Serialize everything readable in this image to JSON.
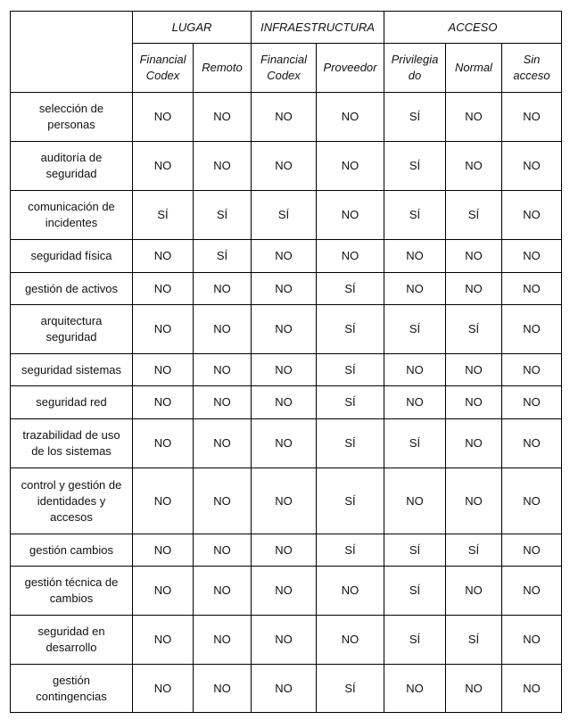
{
  "groups": [
    "LUGAR",
    "INFRAESTRUCTURA",
    "ACCESO"
  ],
  "subheaders": [
    [
      "Financial",
      "Codex"
    ],
    [
      "Remoto"
    ],
    [
      "Financial",
      "Codex"
    ],
    [
      "Proveedor"
    ],
    [
      "Privilegia",
      "do"
    ],
    [
      "Normal"
    ],
    [
      "Sin",
      "acceso"
    ]
  ],
  "rows": [
    {
      "label": [
        "selección de",
        "personas"
      ],
      "values": [
        "NO",
        "NO",
        "NO",
        "NO",
        "SÍ",
        "NO",
        "NO"
      ]
    },
    {
      "label": [
        "auditoría de",
        "seguridad"
      ],
      "values": [
        "NO",
        "NO",
        "NO",
        "NO",
        "SÍ",
        "NO",
        "NO"
      ]
    },
    {
      "label": [
        "comunicación de",
        "incidentes"
      ],
      "values": [
        "SÍ",
        "SÍ",
        "SÍ",
        "NO",
        "SÍ",
        "SÍ",
        "NO"
      ]
    },
    {
      "label": [
        "seguridad física"
      ],
      "values": [
        "NO",
        "SÍ",
        "NO",
        "NO",
        "NO",
        "NO",
        "NO"
      ]
    },
    {
      "label": [
        "gestión de activos"
      ],
      "values": [
        "NO",
        "NO",
        "NO",
        "SÍ",
        "NO",
        "NO",
        "NO"
      ]
    },
    {
      "label": [
        "arquitectura",
        "seguridad"
      ],
      "values": [
        "NO",
        "NO",
        "NO",
        "SÍ",
        "SÍ",
        "SÍ",
        "NO"
      ]
    },
    {
      "label": [
        "seguridad sistemas"
      ],
      "values": [
        "NO",
        "NO",
        "NO",
        "SÍ",
        "NO",
        "NO",
        "NO"
      ]
    },
    {
      "label": [
        "seguridad red"
      ],
      "values": [
        "NO",
        "NO",
        "NO",
        "SÍ",
        "NO",
        "NO",
        "NO"
      ]
    },
    {
      "label": [
        "trazabilidad de uso",
        "de los sistemas"
      ],
      "values": [
        "NO",
        "NO",
        "NO",
        "SÍ",
        "SÍ",
        "NO",
        "NO"
      ]
    },
    {
      "label": [
        "control y gestión de",
        "identidades y",
        "accesos"
      ],
      "values": [
        "NO",
        "NO",
        "NO",
        "SÍ",
        "NO",
        "NO",
        "NO"
      ]
    },
    {
      "label": [
        "gestión cambios"
      ],
      "values": [
        "NO",
        "NO",
        "NO",
        "SÍ",
        "SÍ",
        "SÍ",
        "NO"
      ]
    },
    {
      "label": [
        "gestión técnica de",
        "cambios"
      ],
      "values": [
        "NO",
        "NO",
        "NO",
        "NO",
        "SÍ",
        "NO",
        "NO"
      ]
    },
    {
      "label": [
        "seguridad en",
        "desarrollo"
      ],
      "values": [
        "NO",
        "NO",
        "NO",
        "NO",
        "SÍ",
        "SÍ",
        "NO"
      ]
    },
    {
      "label": [
        "gestión",
        "contingencias"
      ],
      "values": [
        "NO",
        "NO",
        "NO",
        "SÍ",
        "NO",
        "NO",
        "NO"
      ]
    }
  ]
}
